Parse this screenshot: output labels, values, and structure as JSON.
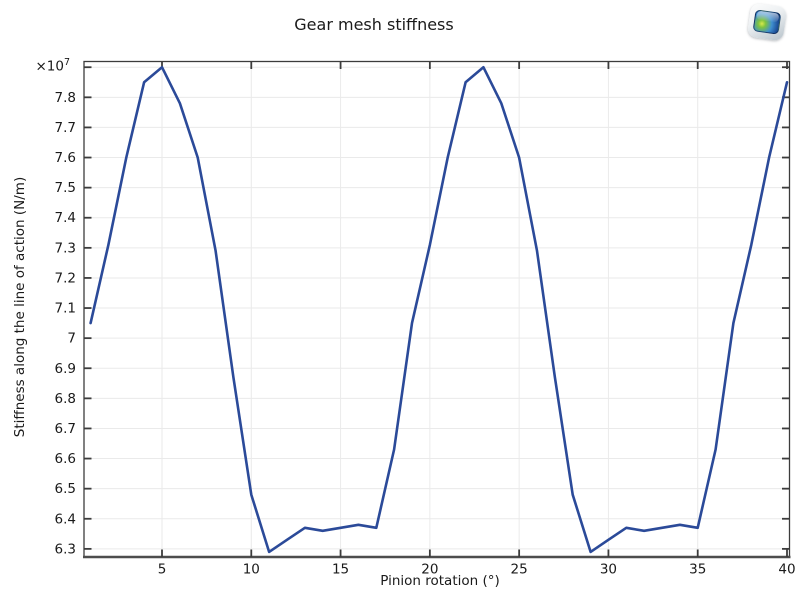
{
  "window": {
    "background": "#ffffff"
  },
  "icons": {
    "watermark": "comsol-logo-icon"
  },
  "chart_data": {
    "type": "line",
    "title": "Gear mesh stiffness",
    "xlabel": "Pinion rotation (°)",
    "ylabel": "Stiffness along the line of action (N/m)",
    "y_axis_multiplier": {
      "base": "×10",
      "exponent": "7"
    },
    "xlim": [
      0.632,
      40.14
    ],
    "ylim": [
      6.273,
      7.919
    ],
    "grid": true,
    "legend": "none",
    "xticks": [
      {
        "v": 5,
        "label": "5"
      },
      {
        "v": 10,
        "label": "10"
      },
      {
        "v": 15,
        "label": "15"
      },
      {
        "v": 20,
        "label": "20"
      },
      {
        "v": 25,
        "label": "25"
      },
      {
        "v": 30,
        "label": "30"
      },
      {
        "v": 35,
        "label": "35"
      },
      {
        "v": 40,
        "label": "40"
      }
    ],
    "yticks": [
      {
        "v": 6.3,
        "label": "6.3"
      },
      {
        "v": 6.4,
        "label": "6.4"
      },
      {
        "v": 6.5,
        "label": "6.5"
      },
      {
        "v": 6.6,
        "label": "6.6"
      },
      {
        "v": 6.7,
        "label": "6.7"
      },
      {
        "v": 6.8,
        "label": "6.8"
      },
      {
        "v": 6.9,
        "label": "6.9"
      },
      {
        "v": 7.0,
        "label": "7"
      },
      {
        "v": 7.1,
        "label": "7.1"
      },
      {
        "v": 7.2,
        "label": "7.2"
      },
      {
        "v": 7.3,
        "label": "7.3"
      },
      {
        "v": 7.4,
        "label": "7.4"
      },
      {
        "v": 7.5,
        "label": "7.5"
      },
      {
        "v": 7.6,
        "label": "7.6"
      },
      {
        "v": 7.7,
        "label": "7.7"
      },
      {
        "v": 7.8,
        "label": "7.8"
      },
      {
        "v": 7.9,
        "label": ""
      }
    ],
    "colors": {
      "line": "#2b4a99",
      "grid": "#eaeaea",
      "frame": "#3c3c3c",
      "axis_bottom": "#4d4d4d",
      "text": "#1a1a1a"
    },
    "series": [
      {
        "name": "Gear mesh stiffness",
        "x": [
          1,
          2,
          3,
          4,
          5,
          6,
          7,
          8,
          9,
          10,
          11,
          12,
          13,
          14,
          15,
          16,
          17,
          18,
          19,
          20,
          21,
          22,
          23,
          24,
          25,
          26,
          27,
          28,
          29,
          30,
          31,
          32,
          33,
          34,
          35,
          36,
          37,
          38,
          39,
          40
        ],
        "y": [
          7.05,
          7.31,
          7.6,
          7.85,
          7.9,
          7.78,
          7.6,
          7.29,
          6.87,
          6.48,
          6.29,
          6.33,
          6.37,
          6.36,
          6.37,
          6.38,
          6.37,
          6.63,
          7.05,
          7.31,
          7.6,
          7.85,
          7.9,
          7.78,
          7.6,
          7.29,
          6.87,
          6.48,
          6.29,
          6.33,
          6.37,
          6.36,
          6.37,
          6.38,
          6.37,
          6.63,
          7.05,
          7.31,
          7.6,
          7.85
        ]
      }
    ]
  }
}
